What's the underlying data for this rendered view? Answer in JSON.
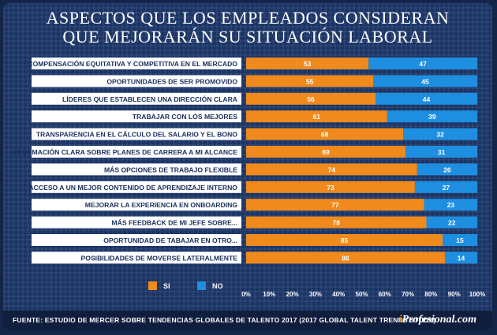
{
  "title_line1": "ASPECTOS QUE LOS EMPLEADOS CONSIDERAN",
  "title_line2": "QUE MEJORARÁN SU SITUACIÓN LABORAL",
  "source": "FUENTE: ESTUDIO DE MERCER SOBRE TENDENCIAS GLOBALES DE TALENTO 2017 (2017 GLOBAL TALENT TRENDS STUDY)",
  "brand_prefix": "i",
  "brand_rest": "Profesional.com",
  "colors": {
    "si": "#f08a1c",
    "no": "#1e8fe0",
    "label_bg": "#ffffff",
    "label_text": "#1b2f5c"
  },
  "chart_data": {
    "type": "bar",
    "orientation": "horizontal",
    "stacked": true,
    "title": "ASPECTOS QUE LOS EMPLEADOS CONSIDERAN QUE MEJORARÁN SU SITUACIÓN LABORAL",
    "xlim": [
      0,
      100
    ],
    "categories": [
      "COMPENSACIÓN EQUITATIVA Y COMPETITIVA EN EL MERCADO",
      "OPORTUNIDADES DE SER PROMOVIDO",
      "LÍDERES QUE ESTABLECEN UNA DIRECCIÓN CLARA",
      "TRABAJAR CON LOS MEJORES",
      "TRANSPARENCIA EN EL CÁLCULO DEL SALARIO Y EL BONO",
      "INFORMACIÓN CLARA SOBRE PLANES DE CARRERA A MI ALCANCE",
      "MÁS OPCIONES DE TRABAJO FLEXIBLE",
      "ACCESO A UN MEJOR CONTENIDO DE APRENDIZAJE INTERNO",
      "MEJORAR LA EXPERIENCIA EN ONBOARDING",
      "MÁS FEEDBACK DE MI JEFE SOBRE...",
      "OPORTUNIDAD DE TABAJAR EN OTRO...",
      "POSIBILIDADES DE MOVERSE LATERALMENTE"
    ],
    "series": [
      {
        "name": "SI",
        "values": [
          53,
          55,
          56,
          61,
          68,
          69,
          74,
          73,
          77,
          78,
          85,
          86
        ]
      },
      {
        "name": "NO",
        "values": [
          47,
          45,
          44,
          39,
          32,
          31,
          26,
          27,
          23,
          22,
          15,
          14
        ]
      }
    ],
    "x_ticks": [
      "0%",
      "10%",
      "20%",
      "30%",
      "40%",
      "50%",
      "60%",
      "70%",
      "80%",
      "90%",
      "100%"
    ],
    "legend": [
      "SI",
      "NO"
    ]
  }
}
